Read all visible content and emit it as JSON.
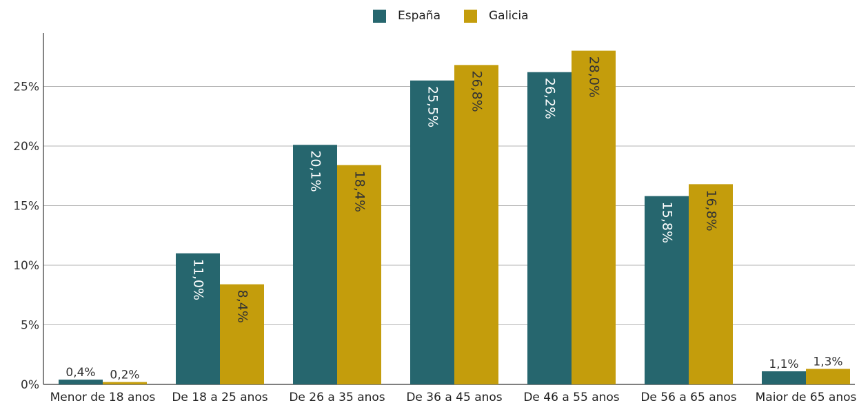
{
  "chart_data": {
    "type": "bar",
    "title": "",
    "xlabel": "",
    "ylabel": "",
    "ylim": [
      0,
      30
    ],
    "yticks": [
      0,
      5,
      10,
      15,
      20,
      25
    ],
    "ytick_labels": [
      "0%",
      "5%",
      "10%",
      "15%",
      "20%",
      "25%"
    ],
    "grid": true,
    "legend_position": "top-center",
    "categories": [
      "Menor de 18 anos",
      "De 18 a 25 anos",
      "De 26 a 35 anos",
      "De 36 a 45 anos",
      "De 46 a 55 anos",
      "De 56 a 65 anos",
      "Maior de 65 anos"
    ],
    "series": [
      {
        "name": "España",
        "color": "#26666e",
        "values": [
          0.4,
          11.0,
          20.1,
          25.5,
          26.2,
          15.8,
          1.1
        ],
        "labels": [
          "0,4%",
          "11,0%",
          "20,1%",
          "25,5%",
          "26,2%",
          "15,8%",
          "1,1%"
        ]
      },
      {
        "name": "Galicia",
        "color": "#c49d0c",
        "values": [
          0.2,
          8.4,
          18.4,
          26.8,
          28.0,
          16.8,
          1.3
        ],
        "labels": [
          "0,2%",
          "8,4%",
          "18,4%",
          "26,8%",
          "28,0%",
          "16,8%",
          "1,3%"
        ]
      }
    ]
  }
}
